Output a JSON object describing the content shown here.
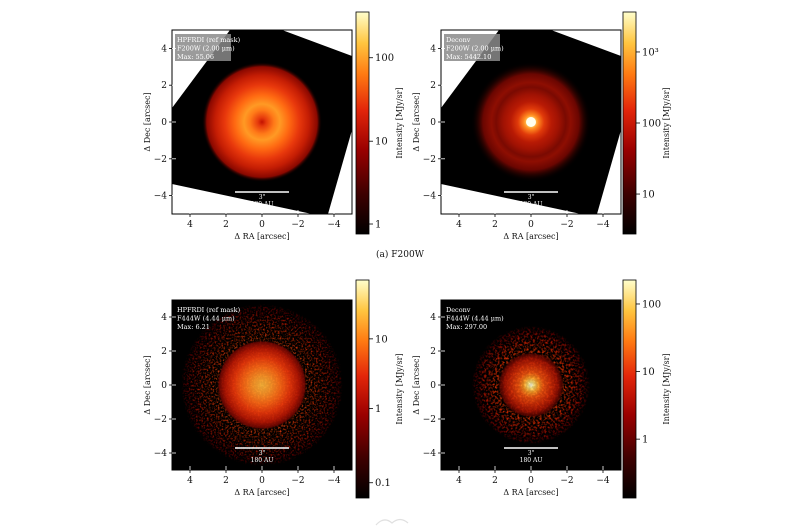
{
  "figure": {
    "caption": "(a) F200W",
    "panels": [
      {
        "id": "f200w-hpfrdi",
        "name": "panel-f200w-hpfrdi",
        "info": [
          "HPFRDI (ref mask)",
          "F200W (2.00 μm)",
          "Max: 55.06"
        ],
        "wedge": true,
        "profile": "ring",
        "noise": 0,
        "colorbar": {
          "label": "Intensity [MJy/sr]",
          "ticks": [
            {
              "t": "100",
              "f": 0.794
            },
            {
              "t": "10",
              "f": 0.418
            },
            {
              "t": "1",
              "f": 0.045
            }
          ]
        }
      },
      {
        "id": "f200w-deconv",
        "name": "panel-f200w-deconv",
        "info": [
          "Deconv",
          "F200W (2.00 μm)",
          "Max: 5442.10"
        ],
        "wedge": true,
        "profile": "peaked-ring",
        "noise": 0,
        "colorbar": {
          "label": "Intensity [MJy/sr]",
          "ticks": [
            {
              "t": "10³",
              "f": 0.82
            },
            {
              "t": "100",
              "f": 0.5
            },
            {
              "t": "10",
              "f": 0.18
            }
          ]
        }
      },
      {
        "id": "f444w-hpfrdi",
        "name": "panel-f444w-hpfrdi",
        "info": [
          "HPFRDI (ref mask)",
          "F444W (4.44 μm)",
          "Max: 6.21"
        ],
        "wedge": false,
        "profile": "broad",
        "noise": 0.35,
        "colorbar": {
          "label": "Intensity [MJy/sr]",
          "ticks": [
            {
              "t": "10",
              "f": 0.73
            },
            {
              "t": "1",
              "f": 0.41
            },
            {
              "t": "0.1",
              "f": 0.07
            }
          ]
        }
      },
      {
        "id": "f444w-deconv",
        "name": "panel-f444w-deconv",
        "info": [
          "Deconv",
          "F444W (4.44 μm)",
          "Max: 297.00"
        ],
        "wedge": false,
        "profile": "clumpy",
        "noise": 0.8,
        "colorbar": {
          "label": "Intensity [MJy/sr]",
          "ticks": [
            {
              "t": "100",
              "f": 0.89
            },
            {
              "t": "10",
              "f": 0.58
            },
            {
              "t": "1",
              "f": 0.27
            }
          ]
        }
      }
    ],
    "axes": {
      "xlabel": "Δ RA [arcsec]",
      "ylabel": "Δ Dec [arcsec]",
      "xticks": [
        "4",
        "2",
        "0",
        "−2",
        "−4"
      ],
      "yticks": [
        "4",
        "2",
        "0",
        "−2",
        "−4"
      ],
      "xlim": [
        5,
        -5
      ],
      "ylim": [
        -5,
        5
      ]
    },
    "scalebar": {
      "top": "3\"",
      "bottom": "180 AU"
    }
  }
}
